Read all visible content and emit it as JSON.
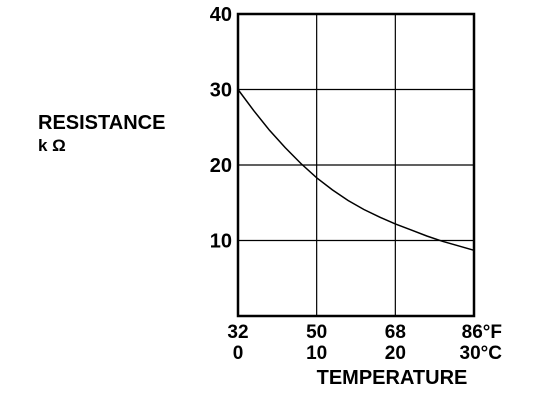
{
  "chart_data": {
    "type": "line",
    "title": "",
    "ylabel_line1": "RESISTANCE",
    "ylabel_line2": "k Ω",
    "xlabel": "TEMPERATURE",
    "x_unit": "°C",
    "ylim": [
      0,
      40
    ],
    "xlim": [
      0,
      30
    ],
    "yticks": [
      {
        "value": 10,
        "label": "10"
      },
      {
        "value": 20,
        "label": "20"
      },
      {
        "value": 30,
        "label": "30"
      },
      {
        "value": 40,
        "label": "40"
      }
    ],
    "xticks": [
      {
        "value": 0,
        "label_f": "32",
        "label_c": "0"
      },
      {
        "value": 10,
        "label_f": "50",
        "label_c": "10"
      },
      {
        "value": 20,
        "label_f": "68",
        "label_c": "20"
      },
      {
        "value": 30,
        "label_f": "86°F",
        "label_c": "30°C"
      }
    ],
    "grid": true,
    "series": [
      {
        "x": [
          0,
          2,
          4,
          6,
          8,
          10,
          12,
          14,
          16,
          18,
          20,
          22,
          24,
          26,
          28,
          30
        ],
        "y": [
          30,
          27.2,
          24.6,
          22.3,
          20.2,
          18.3,
          16.7,
          15.3,
          14.1,
          13.1,
          12.2,
          11.4,
          10.6,
          9.9,
          9.3,
          8.7
        ],
        "color": "#000000"
      }
    ]
  }
}
